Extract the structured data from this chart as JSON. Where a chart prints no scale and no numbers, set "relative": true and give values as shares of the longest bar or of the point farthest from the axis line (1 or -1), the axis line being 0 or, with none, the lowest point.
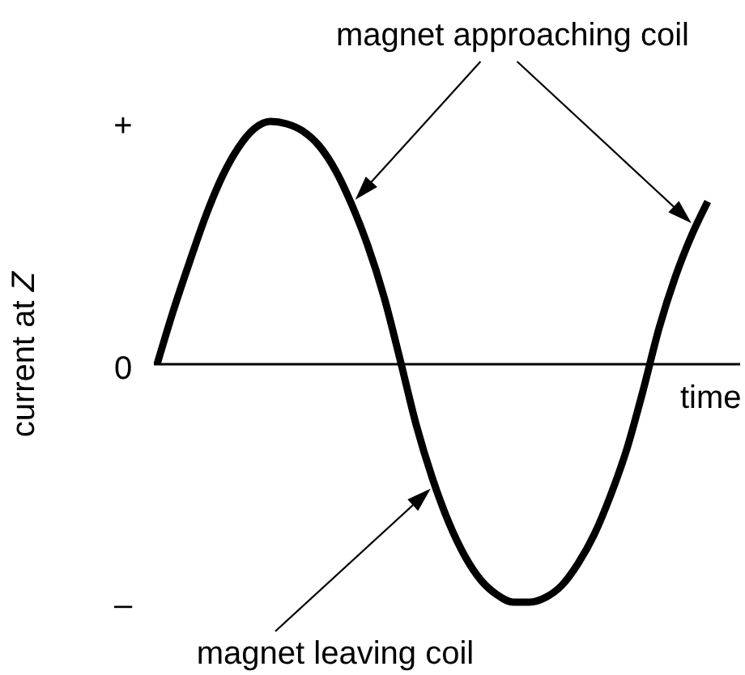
{
  "chart_data": {
    "type": "line",
    "xlabel": "time",
    "ylabel": "current at Z",
    "annotations": [
      "magnet approaching coil",
      "+",
      "0",
      "–",
      "magnet leaving coil"
    ],
    "categories": [
      null,
      null,
      null,
      null,
      null,
      null,
      null,
      null,
      null,
      null,
      null,
      null,
      null,
      null,
      null,
      null,
      null,
      null,
      null,
      null,
      null,
      null,
      null,
      null,
      null,
      null,
      null,
      null,
      null,
      null,
      null,
      null,
      null,
      null,
      null
    ],
    "relative": true,
    "color": "#000000",
    "values": [
      0,
      0.22,
      0.42,
      0.61,
      0.77,
      0.89,
      0.97,
      1,
      0.99,
      0.96,
      0.9,
      0.8,
      0.66,
      0.49,
      0.28,
      0.02,
      -0.25,
      -0.47,
      -0.65,
      -0.79,
      -0.89,
      -0.95,
      -0.98,
      -0.98,
      -0.96,
      -0.91,
      -0.82,
      -0.7,
      -0.54,
      -0.35,
      -0.11,
      0.15,
      0.36,
      0.53,
      0.67
    ]
  }
}
